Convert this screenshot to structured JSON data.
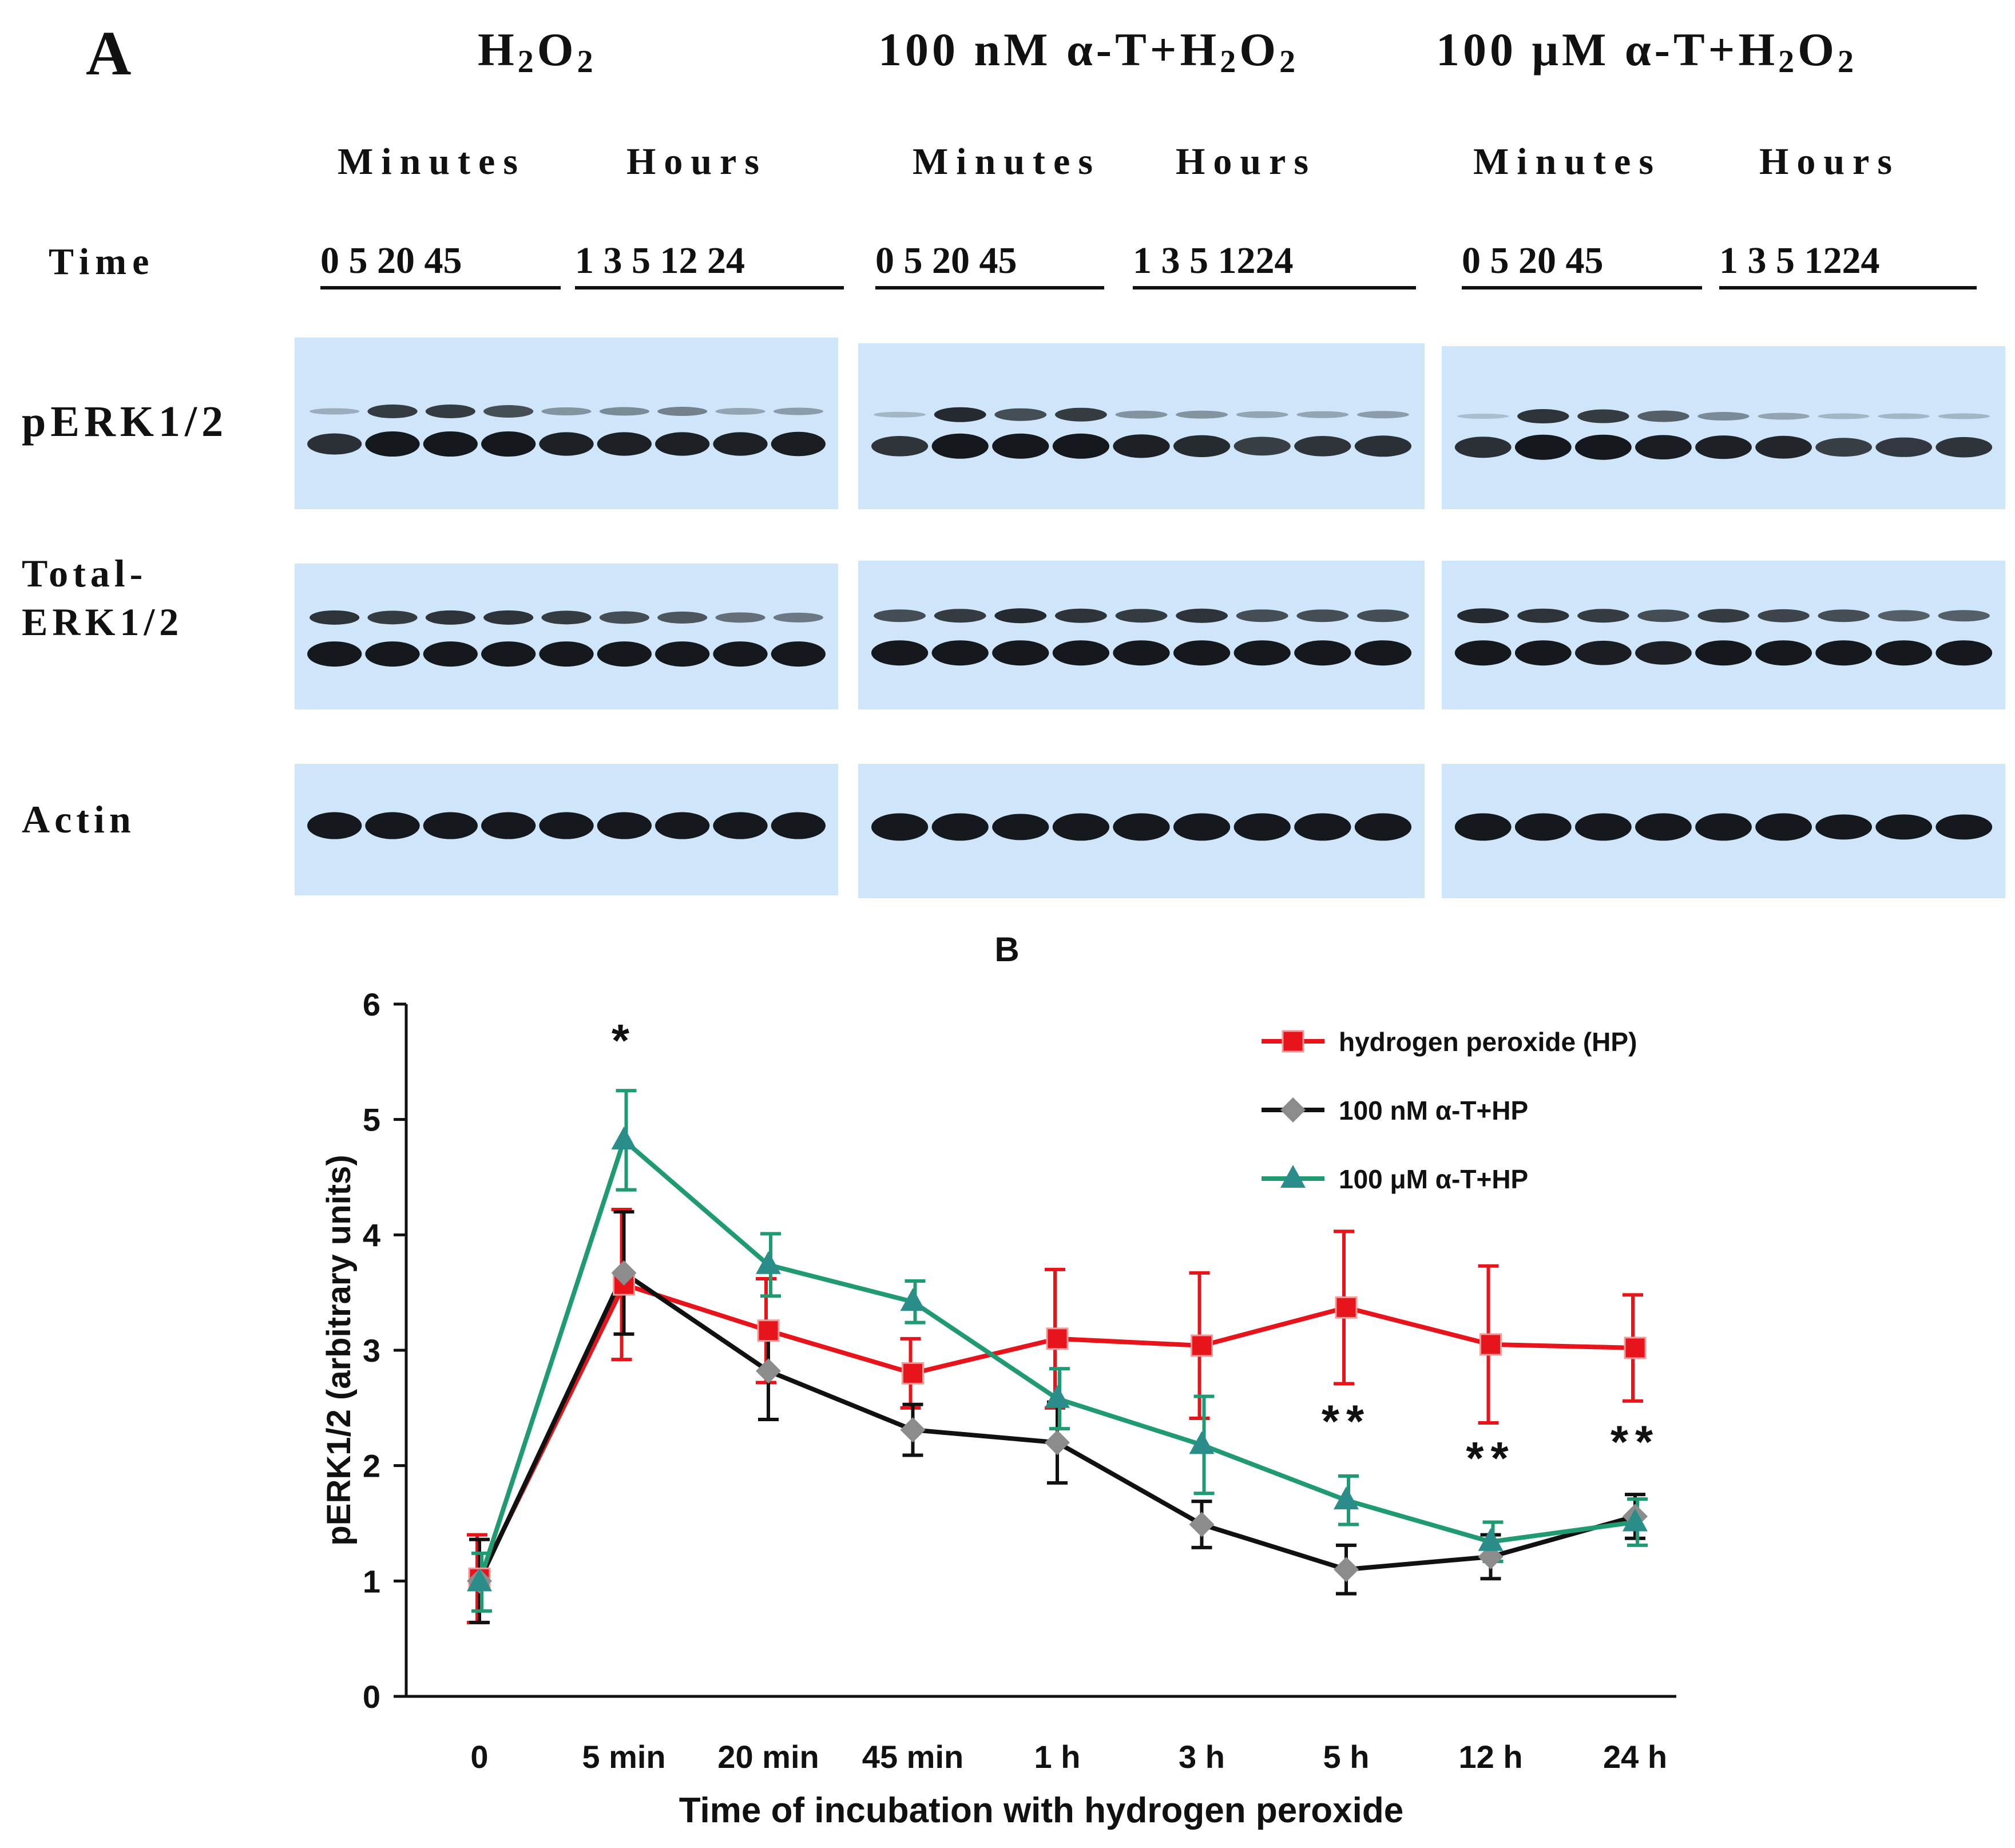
{
  "panel_a": {
    "letter": "A",
    "conditions": [
      {
        "label": "H",
        "sub1": "2",
        "mid": "O",
        "sub2": "2",
        "prefix": ""
      },
      {
        "label": "H",
        "sub1": "2",
        "mid": "O",
        "sub2": "2",
        "prefix": "100 nM α-T+"
      },
      {
        "label": "H",
        "sub1": "2",
        "mid": "O",
        "sub2": "2",
        "prefix": "100  μM α-T+"
      }
    ],
    "minutes_label": "Minutes",
    "hours_label": "Hours",
    "time_label": "Time",
    "lanes": [
      {
        "minutes": "0   5  20  45",
        "hours": "1  3  5  12  24"
      },
      {
        "minutes": "0   5  20  45",
        "hours": "1  3   5  1224"
      },
      {
        "minutes": "0   5   20 45",
        "hours": "1  3  5  1224"
      }
    ],
    "rows": [
      {
        "label_line1": "pERK1/2",
        "label_line2": ""
      },
      {
        "label_line1": "Total-",
        "label_line2": "ERK1/2"
      },
      {
        "label_line1": "Actin",
        "label_line2": ""
      }
    ],
    "blot_color": "#cfe6fa",
    "band_color": "#15181c"
  },
  "panel_b_letter": "B",
  "chart_data": {
    "type": "line",
    "title": "B",
    "xlabel": "Time of incubation with hydrogen peroxide",
    "ylabel": "pERK1/2 (arbitrary units)",
    "categories": [
      "0",
      "5 min",
      "20 min",
      "45 min",
      "1 h",
      "3 h",
      "5 h",
      "12 h",
      "24 h"
    ],
    "ylim": [
      0,
      6
    ],
    "yticks": [
      0,
      1,
      2,
      3,
      4,
      5,
      6
    ],
    "legend_position": "top-right",
    "series": [
      {
        "name": "hydrogen peroxide (HP)",
        "color": "#e8141b",
        "marker": "square",
        "values": [
          1.02,
          3.57,
          3.17,
          2.8,
          3.1,
          3.04,
          3.37,
          3.05,
          3.02
        ],
        "errors": [
          0.38,
          0.65,
          0.45,
          0.3,
          0.6,
          0.63,
          0.66,
          0.68,
          0.46
        ]
      },
      {
        "name": "100 nM α-T+HP",
        "color": "#111111",
        "marker_color": "#8c8c8c",
        "marker": "diamond",
        "values": [
          1.0,
          3.67,
          2.82,
          2.31,
          2.2,
          1.49,
          1.1,
          1.21,
          1.56
        ],
        "errors": [
          0.36,
          0.53,
          0.42,
          0.22,
          0.35,
          0.2,
          0.21,
          0.19,
          0.19
        ]
      },
      {
        "name": "100 μM α-T+HP",
        "color": "#1f9a73",
        "marker_color": "#2a8d8a",
        "marker": "triangle",
        "values": [
          0.99,
          4.82,
          3.74,
          3.42,
          2.58,
          2.18,
          1.7,
          1.34,
          1.51
        ],
        "errors": [
          0.25,
          0.43,
          0.27,
          0.18,
          0.26,
          0.42,
          0.21,
          0.17,
          0.2
        ]
      }
    ],
    "annotations": [
      {
        "text": "*",
        "category": "5 min",
        "y": 5.55
      },
      {
        "text": "**",
        "category": "5 h",
        "y": 2.25
      },
      {
        "text": "**",
        "category": "12 h",
        "y": 1.93
      },
      {
        "text": "**",
        "category": "24 h",
        "y": 2.07
      }
    ]
  }
}
